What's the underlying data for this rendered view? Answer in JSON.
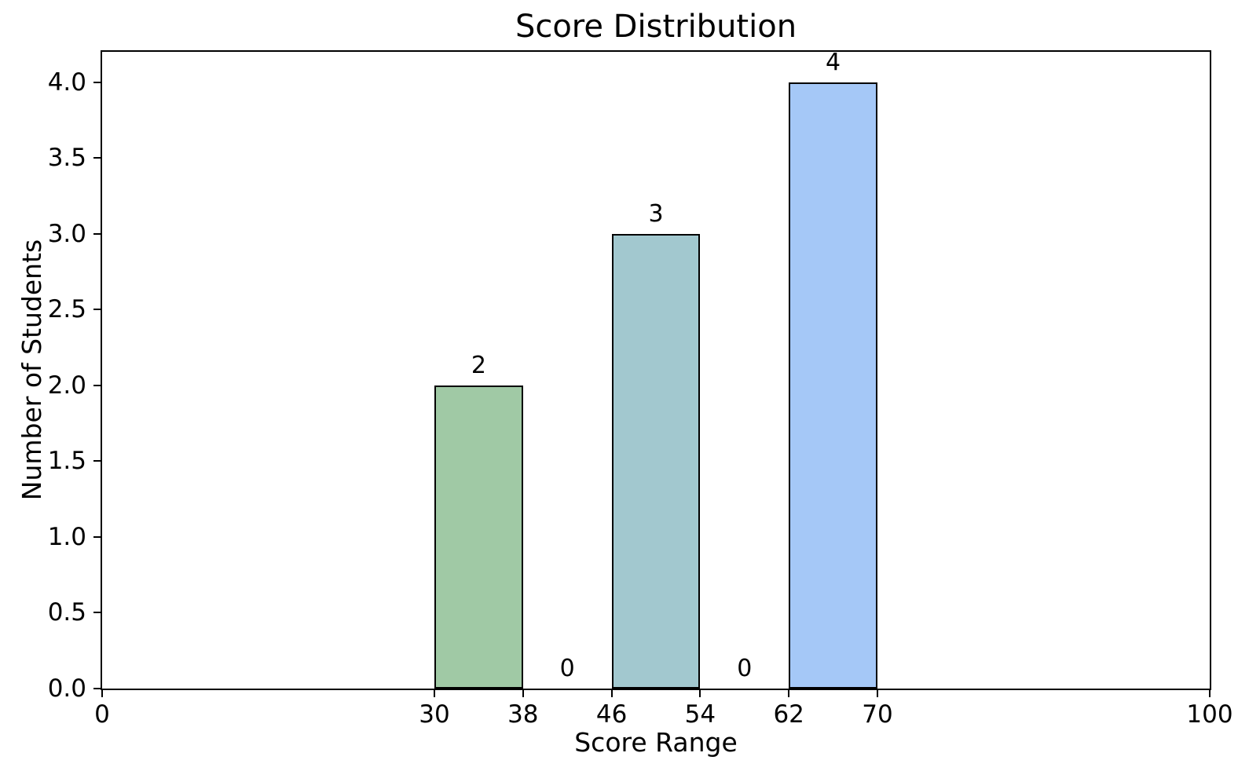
{
  "chart_data": {
    "type": "bar",
    "title": "Score Distribution",
    "xlabel": "Score Range",
    "ylabel": "Number of Students",
    "categories": [
      "30-38",
      "38-46",
      "46-54",
      "54-62",
      "62-70"
    ],
    "values": [
      2,
      0,
      3,
      0,
      4
    ],
    "bins": [
      {
        "range": "30-38",
        "start": 30,
        "end": 38,
        "count": 2,
        "label": "2",
        "color": "#a0c9a5"
      },
      {
        "range": "38-46",
        "start": 38,
        "end": 46,
        "count": 0,
        "label": "0",
        "color": null
      },
      {
        "range": "46-54",
        "start": 46,
        "end": 54,
        "count": 3,
        "label": "3",
        "color": "#a2c8cf"
      },
      {
        "range": "54-62",
        "start": 54,
        "end": 62,
        "count": 0,
        "label": "0",
        "color": null
      },
      {
        "range": "62-70",
        "start": 62,
        "end": 70,
        "count": 4,
        "label": "4",
        "color": "#a5c8f7"
      }
    ],
    "x_ticks": [
      "0",
      "30",
      "38",
      "46",
      "54",
      "62",
      "70",
      "100"
    ],
    "y_ticks": [
      "0.0",
      "0.5",
      "1.0",
      "1.5",
      "2.0",
      "2.5",
      "3.0",
      "3.5",
      "4.0"
    ],
    "xlim": [
      0,
      100
    ],
    "ylim": [
      0,
      4.2
    ],
    "bar_edge_color": "#000000",
    "axis_color": "#000000",
    "background_color": "#ffffff",
    "grid": false,
    "legend": null
  }
}
